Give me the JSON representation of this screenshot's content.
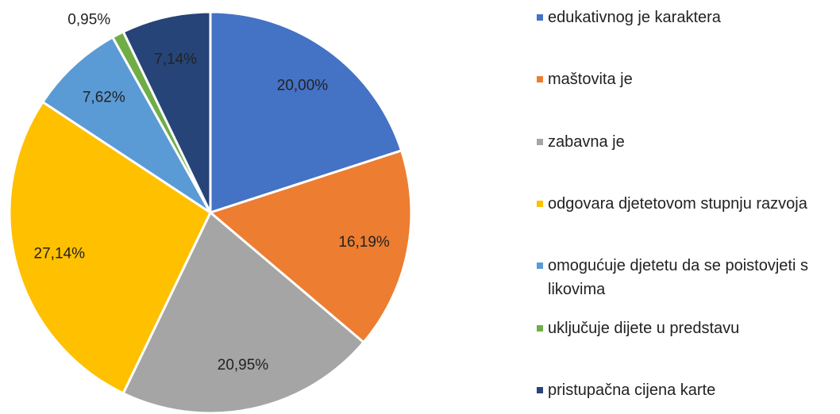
{
  "chart_data": {
    "type": "pie",
    "categories": [
      "edukativnog je karaktera",
      "maštovita je",
      "zabavna je",
      "odgovara djetetovom stupnju razvoja",
      "omogućuje djetetu da se poistovjeti s likovima",
      "uključuje dijete u predstavu",
      "pristupačna cijena karte"
    ],
    "values": [
      20.0,
      16.19,
      20.95,
      27.14,
      7.62,
      0.95,
      7.14
    ],
    "value_labels": [
      "20,00%",
      "16,19%",
      "20,95%",
      "27,14%",
      "7,62%",
      "0,95%",
      "7,14%"
    ],
    "colors": [
      "#4472c4",
      "#ed7d31",
      "#a5a5a5",
      "#ffc000",
      "#5b9bd5",
      "#70ad47",
      "#264478"
    ],
    "legend": "right"
  }
}
